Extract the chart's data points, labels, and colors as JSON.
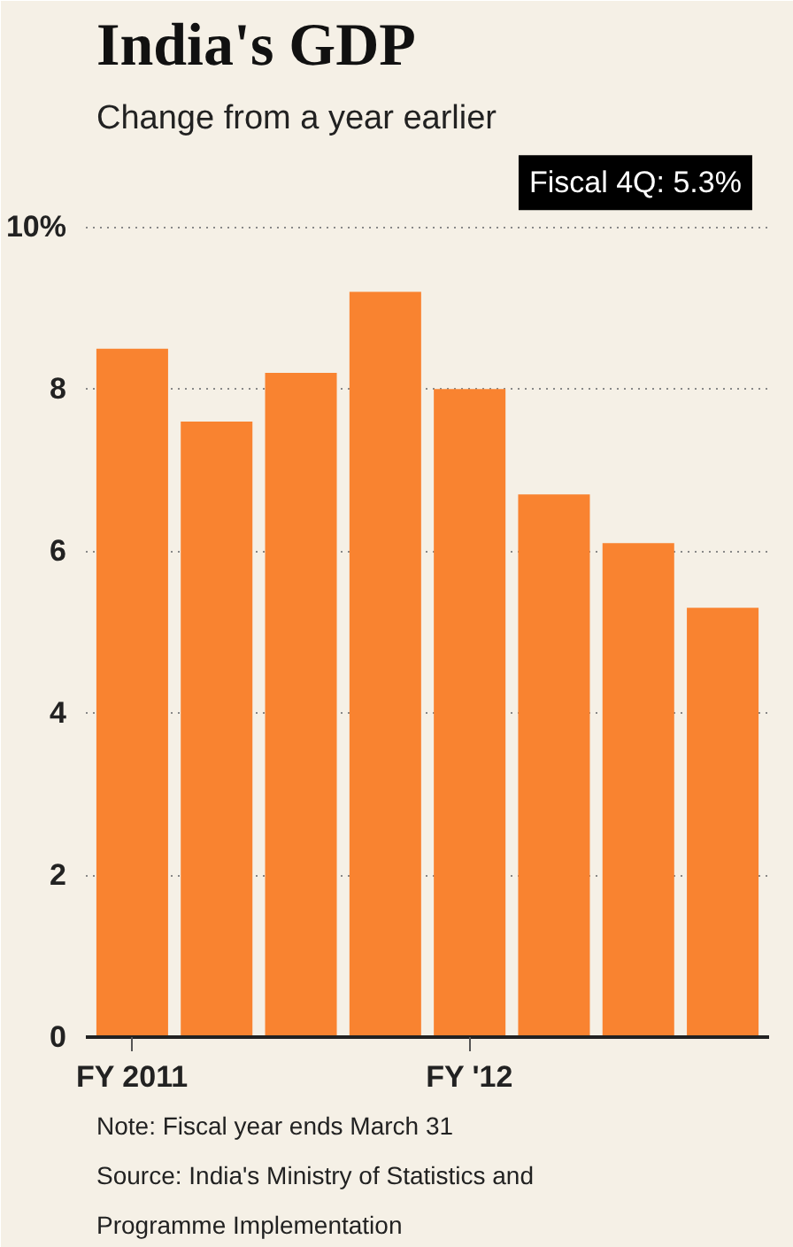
{
  "chart_data": {
    "type": "bar",
    "title": "India's GDP",
    "subtitle": "Change from a year earlier",
    "categories": [
      "FY 2011",
      null,
      null,
      null,
      "FY '12",
      null,
      null,
      null
    ],
    "values": [
      8.5,
      7.6,
      8.2,
      9.2,
      8.0,
      6.7,
      6.1,
      5.3
    ],
    "color": "#f98330",
    "ylim": [
      0,
      11
    ],
    "yticks": [
      0,
      2,
      4,
      6,
      8,
      {
        "value": 10,
        "label": "10%"
      }
    ],
    "grid": "y",
    "annotations": [
      "Fiscal 4Q: 5.3%",
      "Note: Fiscal year ends March 31",
      "Source: India's Ministry of Statistics and Programme Implementation"
    ]
  }
}
